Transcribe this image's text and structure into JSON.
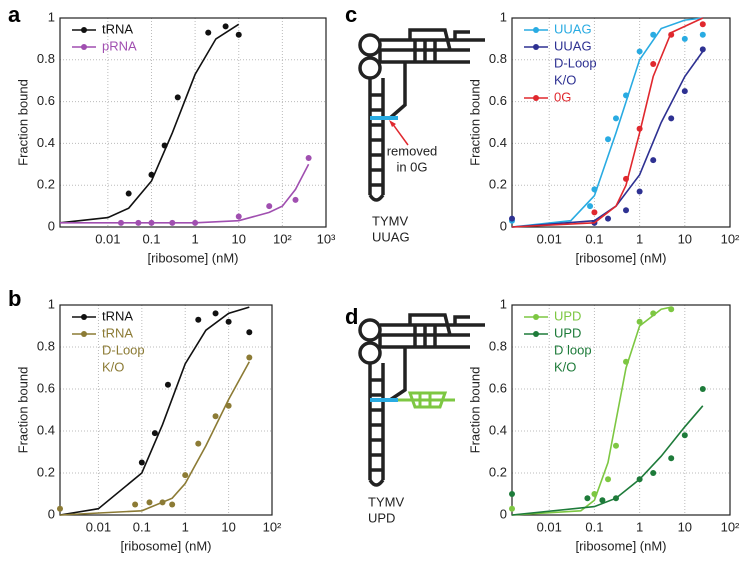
{
  "chart_data": [
    {
      "type": "scatter",
      "panel": "a",
      "xlabel": "[ribosome] (nM)",
      "ylabel": "Fraction bound",
      "xscale": "log",
      "grid": true,
      "legend": "upper left",
      "xlim": [
        0.0008,
        1000
      ],
      "xticks": [
        0.01,
        0.1,
        1,
        10,
        {
          "value": 100,
          "label": "10²"
        },
        {
          "value": 1000,
          "label": "10³"
        }
      ],
      "ylim": [
        0,
        1
      ],
      "yticks": [
        0,
        0.2,
        0.4,
        0.6,
        0.8,
        1
      ],
      "series": [
        {
          "name": [
            "tRNA"
          ],
          "color": "#111111",
          "x": [
            0.03,
            0.1,
            0.2,
            0.4,
            2,
            5,
            10
          ],
          "values": [
            0.16,
            0.25,
            0.39,
            0.62,
            0.93,
            0.96,
            0.92
          ],
          "curve_x": [
            0.0008,
            0.01,
            0.03,
            0.1,
            0.3,
            1,
            3,
            10
          ],
          "curve_values": [
            0.02,
            0.045,
            0.09,
            0.22,
            0.45,
            0.73,
            0.9,
            0.97
          ]
        },
        {
          "name": [
            "pRNA"
          ],
          "color": "#a04fb0",
          "x": [
            0.02,
            0.05,
            0.1,
            0.3,
            1,
            10,
            50,
            200,
            400
          ],
          "values": [
            0.02,
            0.02,
            0.02,
            0.02,
            0.02,
            0.05,
            0.1,
            0.13,
            0.33
          ],
          "curve_x": [
            0.0008,
            1,
            10,
            50,
            100,
            200,
            400
          ],
          "curve_values": [
            0.02,
            0.02,
            0.03,
            0.07,
            0.1,
            0.18,
            0.3
          ]
        }
      ]
    },
    {
      "type": "scatter",
      "panel": "b",
      "xlabel": "[ribosome] (nM)",
      "ylabel": "Fraction bound",
      "xscale": "log",
      "grid": true,
      "legend": "upper left",
      "xlim": [
        0.0013,
        100
      ],
      "xticks": [
        0.01,
        0.1,
        1,
        10,
        {
          "value": 100,
          "label": "10²"
        }
      ],
      "ylim": [
        0,
        1
      ],
      "yticks": [
        0,
        0.2,
        0.4,
        0.6,
        0.8,
        1
      ],
      "series": [
        {
          "name": [
            "tRNA"
          ],
          "color": "#111111",
          "x": [
            0.1,
            0.2,
            0.4,
            2,
            5,
            10,
            30
          ],
          "values": [
            0.25,
            0.39,
            0.62,
            0.93,
            0.96,
            0.92,
            0.87
          ],
          "curve_x": [
            0.0013,
            0.01,
            0.1,
            0.3,
            1,
            3,
            10,
            30
          ],
          "curve_values": [
            0,
            0.03,
            0.2,
            0.43,
            0.72,
            0.88,
            0.96,
            0.99
          ]
        },
        {
          "name": [
            "tRNA",
            "D-Loop",
            "K/O"
          ],
          "color": "#8c7b35",
          "x": [
            0.0013,
            0.07,
            0.15,
            0.3,
            0.5,
            1,
            2,
            5,
            10,
            30
          ],
          "values": [
            0.03,
            0.05,
            0.06,
            0.06,
            0.05,
            0.19,
            0.34,
            0.47,
            0.52,
            0.75
          ],
          "curve_x": [
            0.0013,
            0.1,
            0.5,
            1,
            3,
            10,
            30
          ],
          "curve_values": [
            0,
            0.02,
            0.08,
            0.15,
            0.33,
            0.55,
            0.73
          ]
        }
      ]
    },
    {
      "type": "scatter",
      "panel": "c",
      "xlabel": "[ribosome] (nM)",
      "ylabel": "Fraction bound",
      "xscale": "log",
      "grid": true,
      "legend": "upper left",
      "diagram_labels": [
        [
          "removed",
          "in 0G"
        ],
        [
          "TYMV",
          "UUAG"
        ]
      ],
      "xlim": [
        0.0015,
        100
      ],
      "xticks": [
        0.01,
        0.1,
        1,
        10,
        {
          "value": 100,
          "label": "10²"
        }
      ],
      "ylim": [
        0,
        1
      ],
      "yticks": [
        0,
        0.2,
        0.4,
        0.6,
        0.8,
        1
      ],
      "series": [
        {
          "name": [
            "UUAG"
          ],
          "color": "#29abe2",
          "x": [
            0.0015,
            0.08,
            0.1,
            0.2,
            0.3,
            0.5,
            1,
            2,
            10,
            25
          ],
          "values": [
            0.03,
            0.1,
            0.18,
            0.42,
            0.52,
            0.63,
            0.84,
            0.92,
            0.9,
            0.92
          ],
          "curve_x": [
            0.0015,
            0.03,
            0.1,
            0.3,
            1,
            3,
            10,
            25
          ],
          "curve_values": [
            0,
            0.03,
            0.15,
            0.45,
            0.8,
            0.95,
            0.99,
            1
          ]
        },
        {
          "name": [
            "UUAG",
            "D-Loop",
            "K/O"
          ],
          "color": "#2e3192",
          "x": [
            0.0015,
            0.1,
            0.2,
            0.5,
            1,
            2,
            5,
            10,
            25
          ],
          "values": [
            0.04,
            0.02,
            0.04,
            0.08,
            0.17,
            0.32,
            0.52,
            0.65,
            0.85
          ],
          "curve_x": [
            0.0015,
            0.1,
            0.3,
            1,
            3,
            10,
            25
          ],
          "curve_values": [
            0,
            0.03,
            0.1,
            0.25,
            0.5,
            0.72,
            0.84
          ]
        },
        {
          "name": [
            "0G"
          ],
          "color": "#e0282e",
          "x": [
            0.1,
            0.5,
            1,
            2,
            5,
            25
          ],
          "values": [
            0.07,
            0.23,
            0.47,
            0.78,
            0.92,
            0.97
          ],
          "curve_x": [
            0.0015,
            0.1,
            0.3,
            0.5,
            1,
            2,
            5,
            25
          ],
          "curve_values": [
            0,
            0.02,
            0.1,
            0.2,
            0.45,
            0.72,
            0.93,
            1
          ]
        }
      ]
    },
    {
      "type": "scatter",
      "panel": "d",
      "xlabel": "[ribosome] (nM)",
      "ylabel": "Fraction bound",
      "xscale": "log",
      "grid": true,
      "legend": "upper left",
      "diagram_labels": [
        [
          "TYMV",
          "UPD"
        ]
      ],
      "xlim": [
        0.0015,
        100
      ],
      "xticks": [
        0.01,
        0.1,
        1,
        10,
        {
          "value": 100,
          "label": "10²"
        }
      ],
      "ylim": [
        0,
        1
      ],
      "yticks": [
        0,
        0.2,
        0.4,
        0.6,
        0.8,
        1
      ],
      "series": [
        {
          "name": [
            "UPD"
          ],
          "color": "#7dc742",
          "x": [
            0.0015,
            0.1,
            0.2,
            0.3,
            0.5,
            1,
            2,
            5
          ],
          "values": [
            0.03,
            0.1,
            0.17,
            0.33,
            0.73,
            0.92,
            0.96,
            0.98
          ],
          "curve_x": [
            0.0015,
            0.05,
            0.1,
            0.2,
            0.3,
            0.5,
            1,
            3,
            5
          ],
          "curve_values": [
            0,
            0.02,
            0.07,
            0.25,
            0.45,
            0.7,
            0.9,
            0.98,
            0.99
          ]
        },
        {
          "name": [
            "UPD",
            "D loop",
            "K/O"
          ],
          "color": "#1e7b3a",
          "x": [
            0.0015,
            0.07,
            0.15,
            0.3,
            1,
            2,
            5,
            10,
            25
          ],
          "values": [
            0.1,
            0.08,
            0.07,
            0.08,
            0.17,
            0.2,
            0.27,
            0.38,
            0.6
          ],
          "curve_x": [
            0.0015,
            0.1,
            0.3,
            1,
            3,
            10,
            25
          ],
          "curve_values": [
            0,
            0.04,
            0.08,
            0.17,
            0.28,
            0.42,
            0.52
          ]
        }
      ]
    }
  ]
}
